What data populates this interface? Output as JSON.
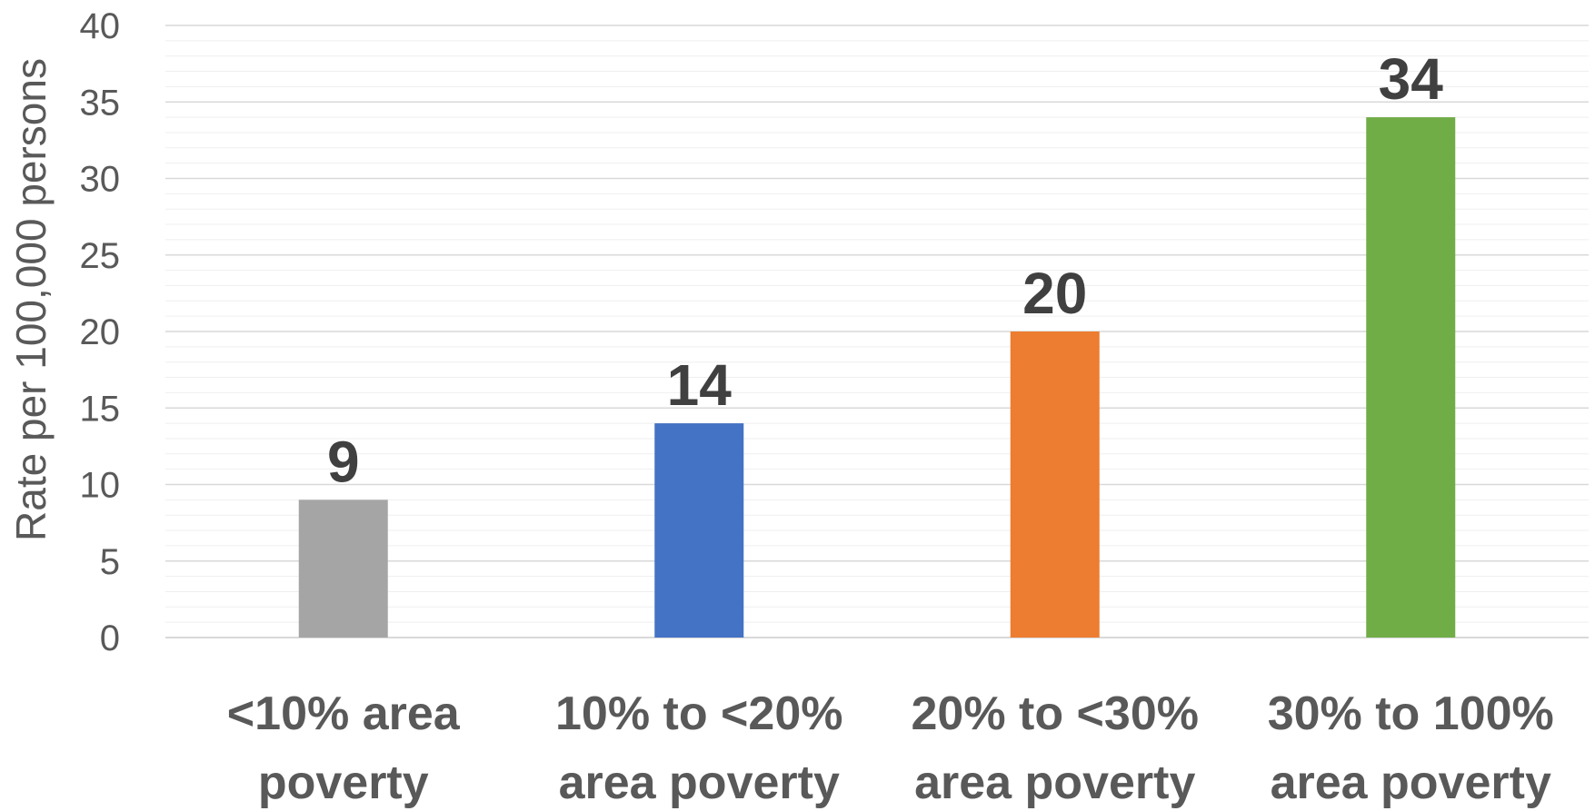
{
  "chart_data": {
    "type": "bar",
    "title": "",
    "xlabel": "",
    "ylabel": "Rate per 100,000 persons",
    "ylim": [
      0,
      40
    ],
    "yticks": [
      0,
      5,
      10,
      15,
      20,
      25,
      30,
      35,
      40
    ],
    "grid": true,
    "legend": "none",
    "categories": [
      [
        "<10% area",
        "poverty"
      ],
      [
        "10% to <20%",
        "area poverty"
      ],
      [
        "20% to <30%",
        "area poverty"
      ],
      [
        "30% to 100%",
        "area poverty"
      ]
    ],
    "values": [
      9,
      14,
      20,
      34
    ],
    "colors": [
      "#a5a5a5",
      "#4472c4",
      "#ed7d31",
      "#70ad47"
    ]
  }
}
